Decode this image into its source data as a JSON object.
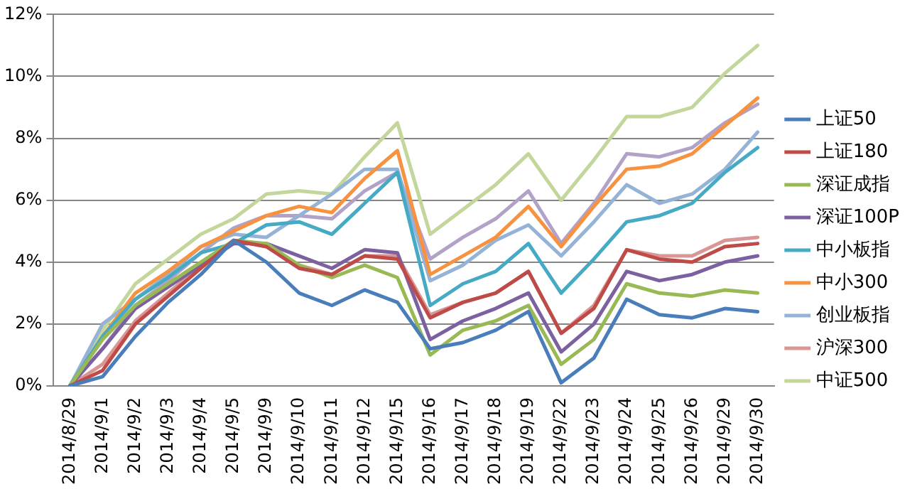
{
  "chart_data": {
    "type": "line",
    "categories": [
      "2014/8/29",
      "2014/9/1",
      "2014/9/2",
      "2014/9/3",
      "2014/9/4",
      "2014/9/5",
      "2014/9/9",
      "2014/9/10",
      "2014/9/11",
      "2014/9/12",
      "2014/9/15",
      "2014/9/16",
      "2014/9/17",
      "2014/9/18",
      "2014/9/19",
      "2014/9/22",
      "2014/9/23",
      "2014/9/24",
      "2014/9/25",
      "2014/9/26",
      "2014/9/29",
      "2014/9/30"
    ],
    "series": [
      {
        "name": "上证50",
        "color": "#4a7ebb",
        "values": [
          0,
          0.3,
          1.6,
          2.7,
          3.6,
          4.7,
          4.0,
          3.0,
          2.6,
          3.1,
          2.7,
          1.2,
          1.4,
          1.8,
          2.4,
          0.1,
          0.9,
          2.8,
          2.3,
          2.2,
          2.5,
          2.4
        ]
      },
      {
        "name": "上证180",
        "color": "#be4b48",
        "values": [
          0,
          0.5,
          2.0,
          2.9,
          3.8,
          4.7,
          4.5,
          3.8,
          3.6,
          4.2,
          4.1,
          2.2,
          2.7,
          3.0,
          3.7,
          1.7,
          2.5,
          4.4,
          4.1,
          4.0,
          4.5,
          4.6
        ]
      },
      {
        "name": "深证成指",
        "color": "#98b954",
        "values": [
          0,
          1.5,
          2.6,
          3.3,
          4.0,
          4.7,
          4.6,
          3.9,
          3.5,
          3.9,
          3.5,
          1.0,
          1.8,
          2.1,
          2.6,
          0.7,
          1.5,
          3.3,
          3.0,
          2.9,
          3.1,
          3.0
        ]
      },
      {
        "name": "深证100P",
        "color": "#7d60a0",
        "values": [
          0,
          1.2,
          2.5,
          3.2,
          3.9,
          4.6,
          4.6,
          4.2,
          3.8,
          4.4,
          4.3,
          1.5,
          2.1,
          2.5,
          3.0,
          1.1,
          2.0,
          3.7,
          3.4,
          3.6,
          4.0,
          4.2
        ]
      },
      {
        "name": "中小板指",
        "color": "#46aac5",
        "values": [
          0,
          1.6,
          2.8,
          3.5,
          4.3,
          4.6,
          5.2,
          5.3,
          4.9,
          5.9,
          6.9,
          2.6,
          3.3,
          3.7,
          4.6,
          3.0,
          4.1,
          5.3,
          5.5,
          5.9,
          6.9,
          7.7
        ]
      },
      {
        "name": "中小300",
        "color": "#f69240",
        "values": [
          0,
          1.6,
          3.0,
          3.7,
          4.5,
          5.0,
          5.5,
          5.8,
          5.6,
          6.7,
          7.6,
          3.6,
          4.2,
          4.8,
          5.8,
          4.5,
          5.8,
          7.0,
          7.1,
          7.5,
          8.4,
          9.3
        ]
      },
      {
        "name": "创业板指",
        "color": "#95b3d7",
        "values": [
          0,
          2.0,
          2.8,
          3.6,
          4.5,
          4.9,
          4.8,
          5.5,
          6.2,
          7.0,
          7.0,
          3.4,
          3.9,
          4.7,
          5.2,
          4.2,
          5.3,
          6.5,
          5.9,
          6.2,
          7.0,
          8.2
        ]
      },
      {
        "name": "沪深300",
        "color": "#d99694",
        "values": [
          0,
          0.7,
          2.1,
          3.0,
          3.9,
          4.7,
          4.5,
          3.9,
          3.6,
          4.2,
          4.2,
          2.3,
          2.7,
          3.0,
          3.7,
          1.7,
          2.6,
          4.4,
          4.2,
          4.2,
          4.7,
          4.8
        ]
      },
      {
        "name": "中证500",
        "color": "#c3d69b",
        "values": [
          0,
          1.8,
          3.3,
          4.1,
          4.9,
          5.4,
          6.2,
          6.3,
          6.2,
          7.4,
          8.5,
          4.9,
          5.7,
          6.5,
          7.5,
          6.0,
          7.3,
          8.7,
          8.7,
          9.0,
          10.1,
          11.0
        ]
      },
      {
        "color": "#b2a2c7",
        "values": [
          0,
          1.2,
          2.6,
          3.4,
          4.3,
          5.1,
          5.5,
          5.5,
          5.4,
          6.3,
          6.9,
          4.1,
          4.8,
          5.4,
          6.3,
          4.6,
          5.9,
          7.5,
          7.4,
          7.7,
          8.5,
          9.1
        ]
      }
    ],
    "ylim": [
      0,
      12
    ],
    "yticks": [
      {
        "value": 0,
        "label": "0%"
      },
      {
        "value": 2,
        "label": "2%"
      },
      {
        "value": 4,
        "label": "4%"
      },
      {
        "value": 6,
        "label": "6%"
      },
      {
        "value": 8,
        "label": "8%"
      },
      {
        "value": 10,
        "label": "10%"
      },
      {
        "value": 12,
        "label": "12%"
      }
    ],
    "grid": "y",
    "legend": "right",
    "marker": "none",
    "line_style": "solid"
  }
}
